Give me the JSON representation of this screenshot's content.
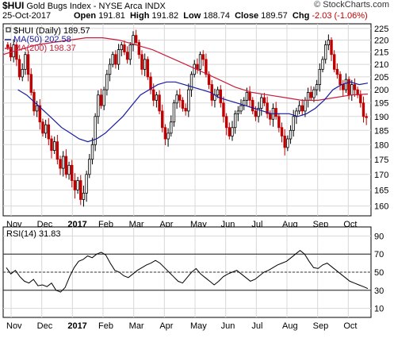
{
  "header": {
    "symbol": "$HUI",
    "name": "Gold Bugs Index - NYSE Arca  INDX",
    "date": "25-Oct-2017",
    "open_label": "Open",
    "open": "191.81",
    "high_label": "High",
    "high": "191.82",
    "low_label": "Low",
    "low": "188.74",
    "close_label": "Close",
    "close": "189.57",
    "chg_label": "Chg",
    "chg": "-2.03 (-1.06%)",
    "brand": "© StockCharts.com"
  },
  "colors": {
    "up": "#000000",
    "down": "#c00000",
    "ma50": "#1a1aa0",
    "ma200": "#c81e3c",
    "grid": "#d8d8d8",
    "rsi": "#000000"
  },
  "chart_data": [
    {
      "type": "candlestick",
      "legend": [
        {
          "label": "$HUI (Daily) 189.57",
          "color": "#000000"
        },
        {
          "label": "MA(50) 202.58",
          "color": "#1a1aa0"
        },
        {
          "label": "MA(200) 198.37",
          "color": "#c81e3c"
        }
      ],
      "ylim": [
        157,
        227
      ],
      "y_ticks": [
        "160",
        "165",
        "170",
        "175",
        "180",
        "185",
        "190",
        "195",
        "200",
        "205",
        "210",
        "215",
        "220",
        "225"
      ],
      "x_ticks": [
        "Nov",
        "Dec",
        "2017",
        "Feb",
        "Mar",
        "Apr",
        "May",
        "Jun",
        "Jul",
        "Aug",
        "Sep",
        "Oct"
      ],
      "y_scale": "log",
      "grid": true,
      "close": [
        217,
        213,
        218,
        212,
        205,
        208,
        214,
        206,
        199,
        192,
        194,
        188,
        184,
        187,
        182,
        178,
        181,
        175,
        172,
        176,
        170,
        173,
        168,
        165,
        168,
        162,
        164,
        170,
        175,
        180,
        190,
        198,
        194,
        200,
        206,
        210,
        214,
        210,
        216,
        218,
        215,
        212,
        218,
        222,
        219,
        214,
        208,
        212,
        205,
        200,
        196,
        198,
        192,
        186,
        182,
        184,
        188,
        195,
        198,
        196,
        193,
        192,
        200,
        206,
        210,
        208,
        214,
        212,
        206,
        202,
        196,
        198,
        200,
        195,
        190,
        186,
        183,
        186,
        191,
        192,
        194,
        196,
        199,
        196,
        192,
        190,
        193,
        197,
        195,
        191,
        189,
        193,
        190,
        186,
        183,
        179,
        182,
        185,
        190,
        192,
        194,
        192,
        196,
        199,
        197,
        200,
        202,
        208,
        212,
        218,
        220,
        214,
        208,
        206,
        202,
        200,
        204,
        198,
        202,
        200,
        198,
        195,
        190,
        189.57
      ],
      "ma50": [
        200,
        198,
        195,
        192,
        189,
        186,
        184,
        182,
        181,
        182,
        184,
        187,
        190,
        194,
        198,
        200,
        202,
        203,
        203,
        202,
        201,
        200,
        199,
        197,
        196,
        195,
        194,
        193,
        192,
        191,
        191,
        191,
        190,
        191,
        193,
        196,
        200,
        202,
        203,
        202,
        202.58
      ],
      "ma200": [
        214,
        216,
        218,
        219,
        220,
        221,
        221,
        220,
        218,
        216,
        213,
        210,
        207,
        204,
        201,
        199,
        198,
        197,
        196,
        196,
        197,
        198,
        198.37
      ]
    },
    {
      "type": "line",
      "legend": [
        {
          "label": "RSI(14) 31.83",
          "color": "#000000"
        }
      ],
      "ylim": [
        0,
        100
      ],
      "y_ticks": [
        "10",
        "30",
        "50",
        "70",
        "90"
      ],
      "x_ticks": [
        "Nov",
        "Dec",
        "2017",
        "Feb",
        "Mar",
        "Apr",
        "May",
        "Jun",
        "Jul",
        "Aug",
        "Sep",
        "Oct"
      ],
      "reference_lines": [
        30,
        50,
        70
      ],
      "values": [
        55,
        48,
        52,
        45,
        40,
        38,
        42,
        35,
        36,
        34,
        38,
        30,
        28,
        33,
        45,
        55,
        62,
        64,
        68,
        66,
        70,
        72,
        69,
        60,
        52,
        50,
        46,
        44,
        48,
        52,
        55,
        58,
        60,
        63,
        60,
        55,
        50,
        45,
        40,
        38,
        44,
        50,
        54,
        48,
        44,
        40,
        36,
        40,
        45,
        48,
        50,
        52,
        48,
        44,
        40,
        42,
        46,
        50,
        52,
        55,
        58,
        60,
        62,
        66,
        70,
        74,
        70,
        62,
        55,
        54,
        58,
        60,
        56,
        52,
        48,
        44,
        40,
        38,
        36,
        34,
        31.83
      ]
    }
  ]
}
